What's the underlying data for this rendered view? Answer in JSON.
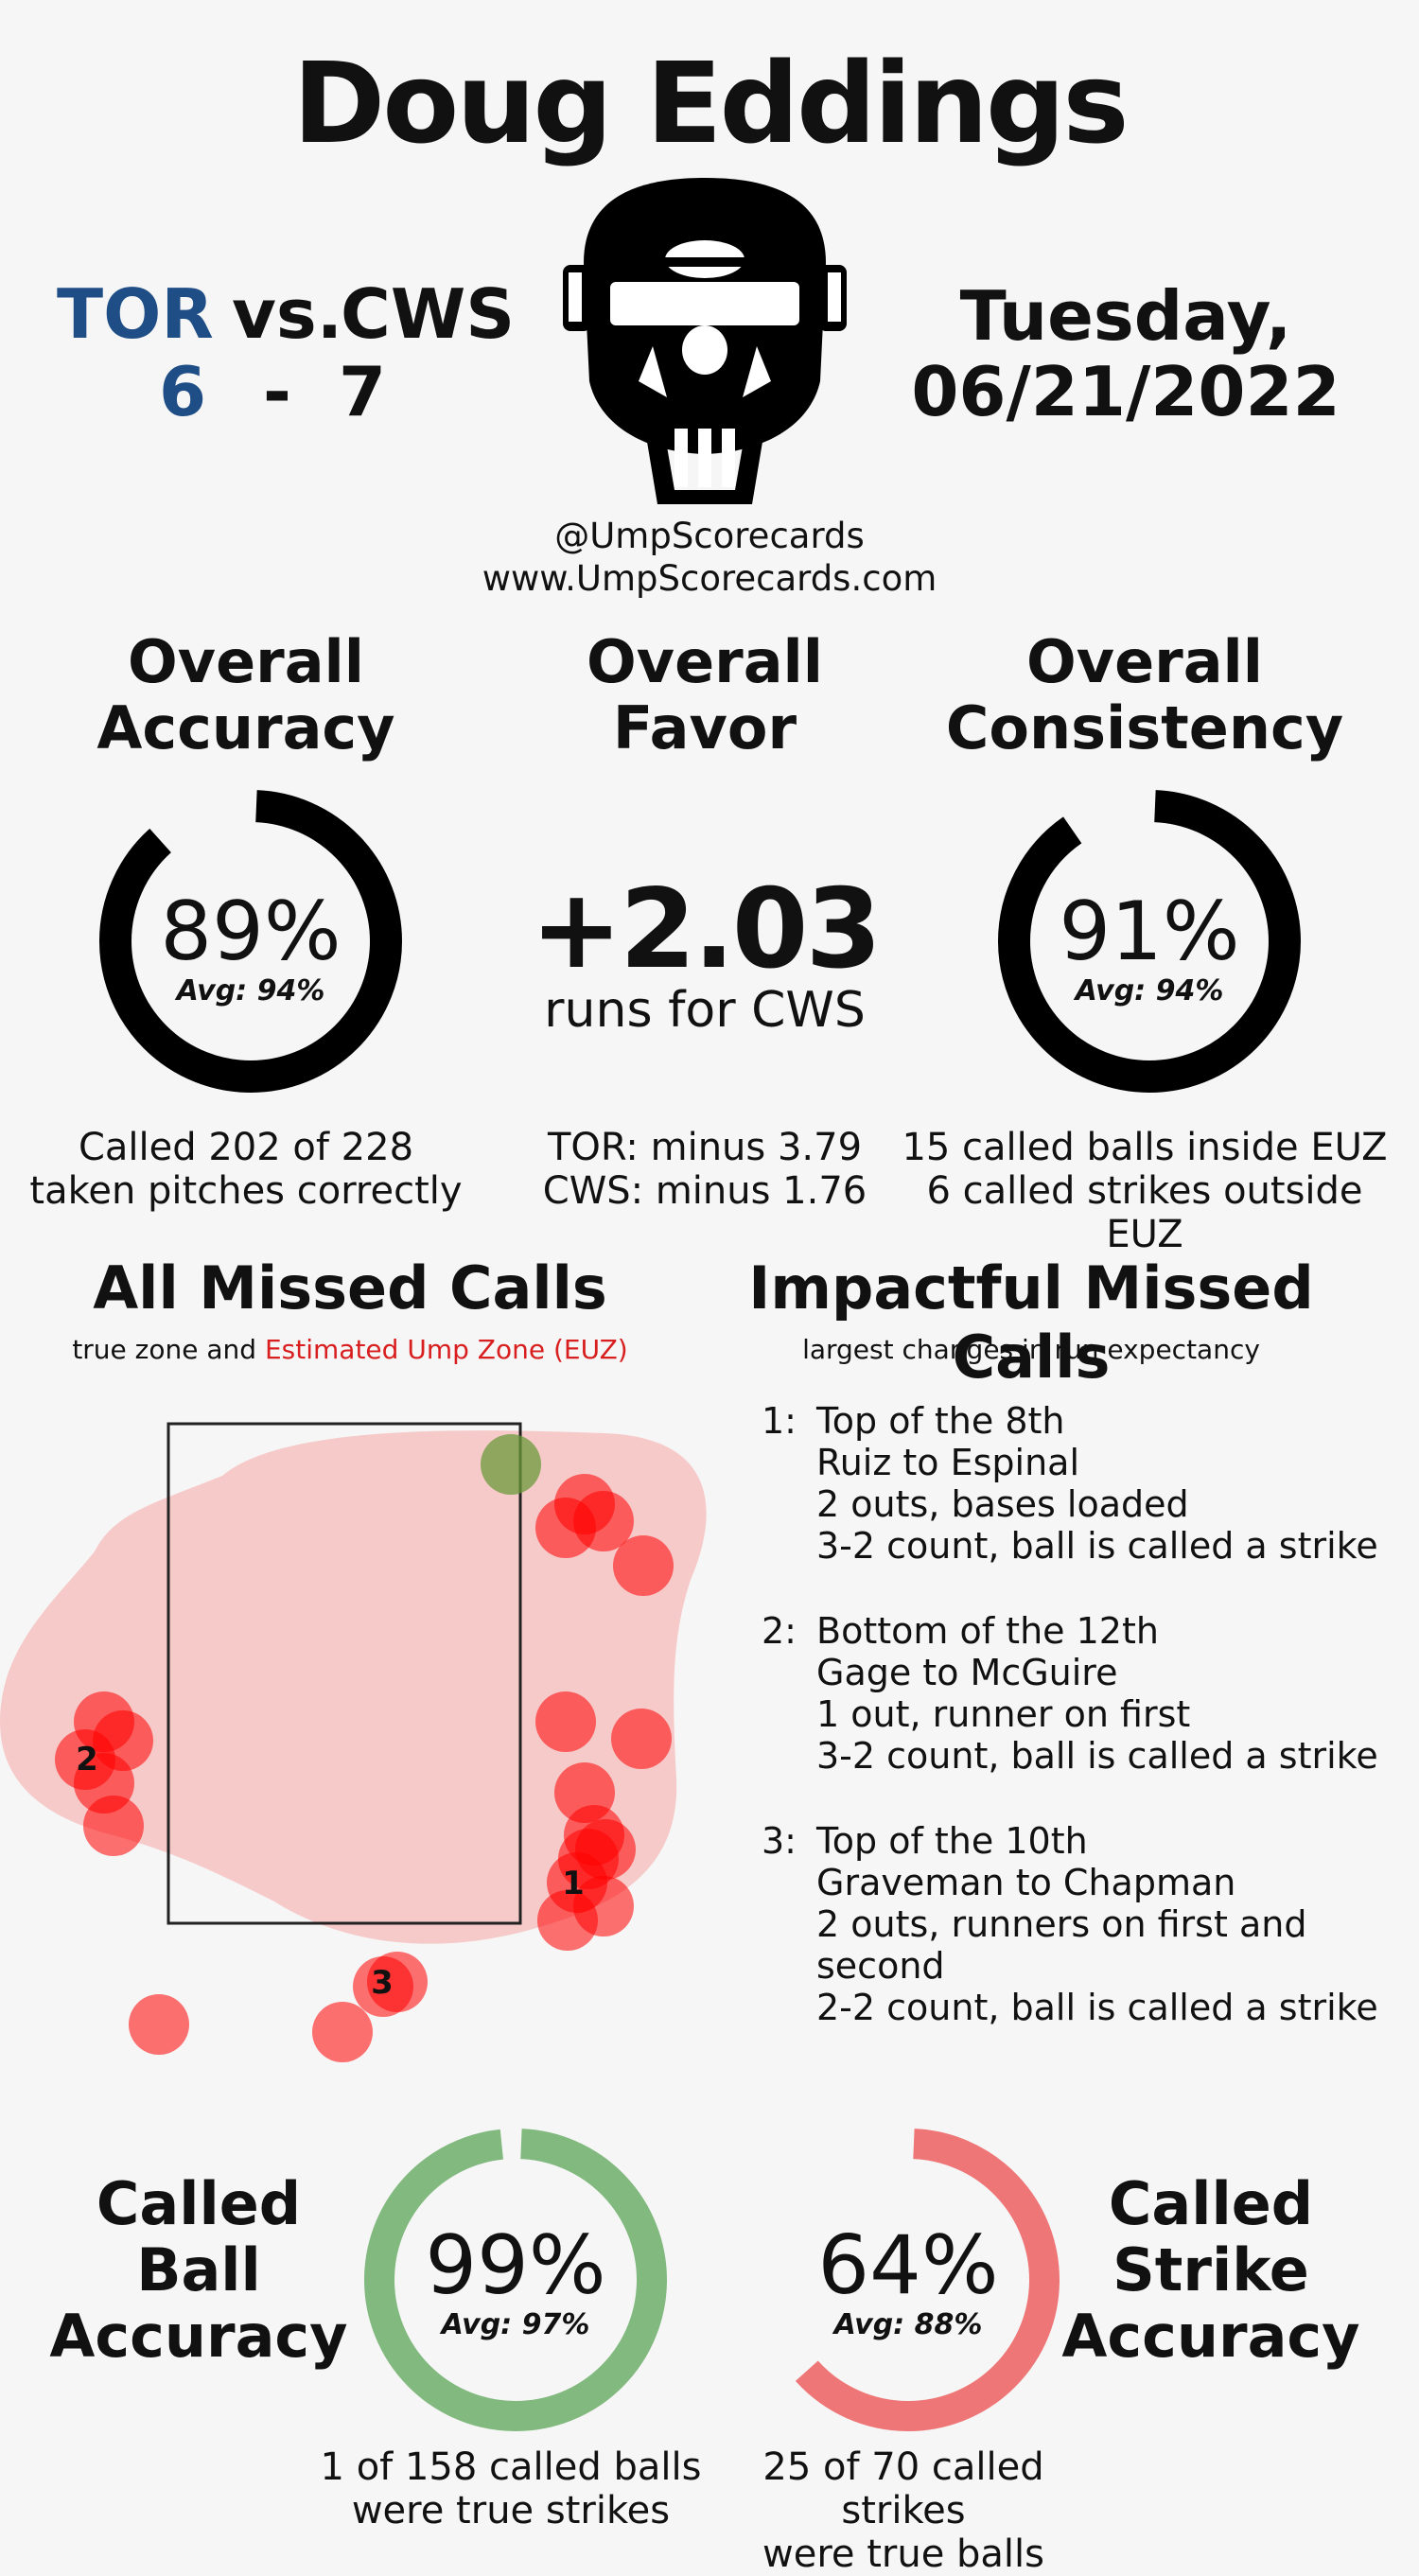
{
  "umpire": "Doug Eddings",
  "game": {
    "away_team": "TOR",
    "vs": "vs.",
    "home_team": "CWS",
    "away_score": "6",
    "dash": "-",
    "home_score": "7",
    "day": "Tuesday,",
    "date": "06/21/2022"
  },
  "credits": {
    "handle": "@UmpScorecards",
    "site": "www.UmpScorecards.com"
  },
  "accuracy": {
    "title_line1": "Overall",
    "title_line2": "Accuracy",
    "percent": "89%",
    "percent_value": 89,
    "avg": "Avg: 94%",
    "detail_line1": "Called 202 of 228",
    "detail_line2": "taken pitches correctly"
  },
  "favor": {
    "title_line1": "Overall",
    "title_line2": "Favor",
    "value": "+2.03",
    "runs_for": "runs for CWS",
    "detail_line1": "TOR: minus 3.79",
    "detail_line2": "CWS: minus 1.76"
  },
  "consistency": {
    "title_line1": "Overall",
    "title_line2": "Consistency",
    "percent": "91%",
    "percent_value": 91,
    "avg": "Avg: 94%",
    "detail_line1": "15 called balls inside EUZ",
    "detail_line2": "6 called strikes outside EUZ"
  },
  "missed_calls": {
    "title": "All Missed Calls",
    "subtitle_prefix": "true zone and ",
    "subtitle_euz": "Estimated Ump Zone (EUZ)",
    "labels": [
      "1",
      "2",
      "3"
    ]
  },
  "impactful": {
    "title": "Impactful Missed Calls",
    "subtitle": "largest changes in run expectancy",
    "calls": [
      {
        "num": "1:",
        "inning": "Top of the 8th",
        "matchup": "Ruiz to Espinal",
        "situation": "2 outs, bases loaded",
        "count": "3-2 count, ball is called a strike"
      },
      {
        "num": "2:",
        "inning": "Bottom of the 12th",
        "matchup": "Gage to McGuire",
        "situation": "1 out, runner on first",
        "count": "3-2 count, ball is called a strike"
      },
      {
        "num": "3:",
        "inning": "Top of the 10th",
        "matchup": "Graveman to Chapman",
        "situation": "2 outs, runners on first and second",
        "count": "2-2 count, ball is called a strike"
      }
    ]
  },
  "ball_accuracy": {
    "title_line1": "Called",
    "title_line2": "Ball",
    "title_line3": "Accuracy",
    "percent": "99%",
    "percent_value": 99,
    "avg": "Avg: 97%",
    "detail_line1": "1 of 158 called balls",
    "detail_line2": "were true strikes",
    "color": "#81b97e"
  },
  "strike_accuracy": {
    "title_line1": "Called",
    "title_line2": "Strike",
    "title_line3": "Accuracy",
    "percent": "64%",
    "percent_value": 64,
    "avg": "Avg: 88%",
    "detail_line1": "25 of 70 called strikes",
    "detail_line2": "were true balls",
    "color": "#ef7677"
  },
  "colors": {
    "team_blue": "#1f4e86",
    "euz_red": "#d81e1e",
    "ring_black": "#000000"
  }
}
